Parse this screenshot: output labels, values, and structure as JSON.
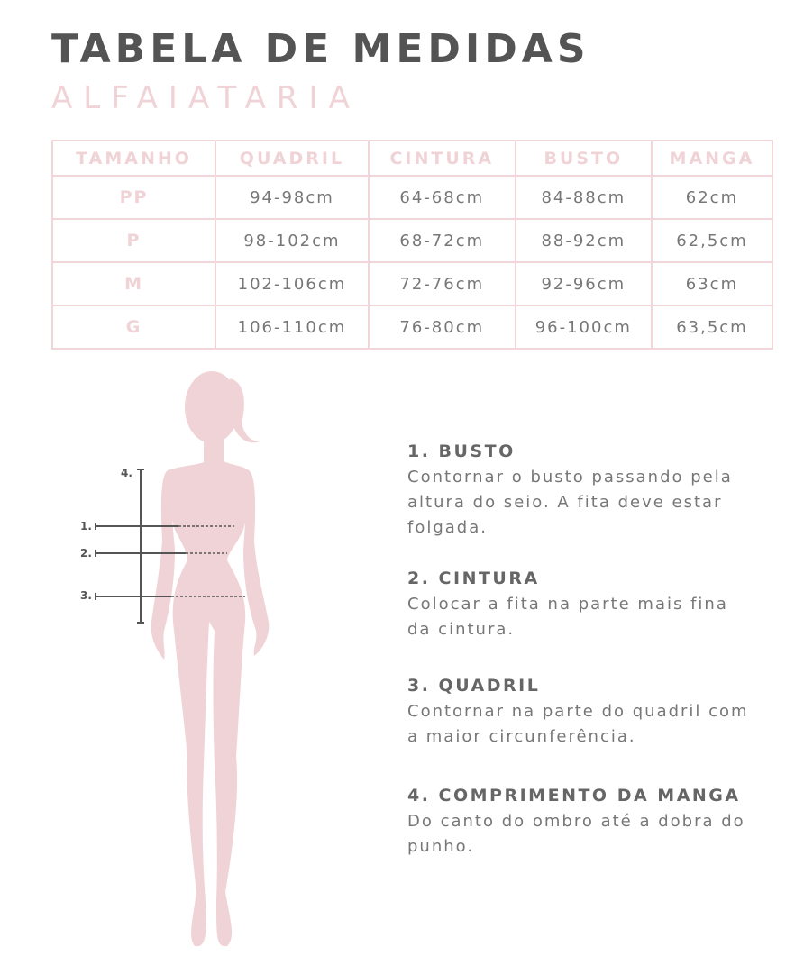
{
  "header": {
    "title": "TABELA DE MEDIDAS",
    "subtitle": "ALFAIATARIA"
  },
  "table": {
    "headers": [
      "TAMANHO",
      "QUADRIL",
      "CINTURA",
      "BUSTO",
      "MANGA"
    ],
    "rows": [
      [
        "PP",
        "94-98cm",
        "64-68cm",
        "84-88cm",
        "62cm"
      ],
      [
        "P",
        "98-102cm",
        "68-72cm",
        "88-92cm",
        "62,5cm"
      ],
      [
        "M",
        "102-106cm",
        "72-76cm",
        "92-96cm",
        "63cm"
      ],
      [
        "G",
        "106-110cm",
        "76-80cm",
        "96-100cm",
        "63,5cm"
      ]
    ]
  },
  "figure": {
    "markers": [
      "1.",
      "2.",
      "3.",
      "4."
    ]
  },
  "instructions": [
    {
      "title": "1. BUSTO",
      "text": "Contornar o busto passando pela altura do seio. A fita deve estar folgada."
    },
    {
      "title": "2. CINTURA",
      "text": "Colocar a fita na parte mais fina da cintura."
    },
    {
      "title": "3. QUADRIL",
      "text": "Contornar na parte do quadril com a maior circunferência."
    },
    {
      "title": "4. COMPRIMENTO DA MANGA",
      "text": "Do canto do ombro até a dobra do punho."
    }
  ],
  "colors": {
    "title": "#545454",
    "accent": "#f0d3d6",
    "text": "#777777"
  }
}
